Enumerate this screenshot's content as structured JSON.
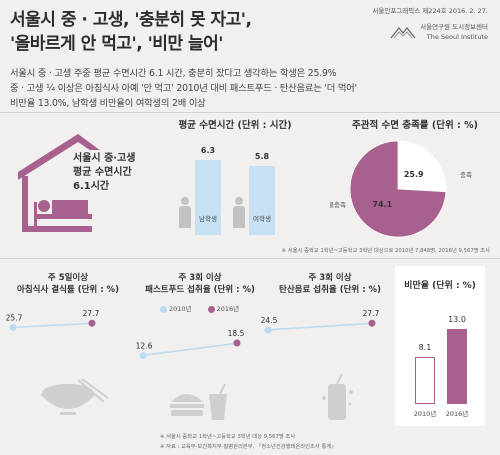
{
  "title_line1": "서울시 중 · 고생, '충분히 못 자고',",
  "title_line2": "'올바르게 안 먹고', '비만 늘어'",
  "meta": {
    "publication": "서울인포그래픽스 제224호 2016. 2. 27.",
    "org_kr": "서울연구원 도시정보센터",
    "org_en": "The Seoul Institute"
  },
  "intro": {
    "line1": "서울시 중 · 고생 주중 평균 수면시간 6.1 시간, 충분히 잤다고 생각하는 학생은 25.9%",
    "line2": "중 · 고생 ¼ 이상은 아침식사 아예 '안 먹고' 2010년 대비 패스트푸드 · 탄산음료는 '더 먹어'",
    "line3": "비만율 13.0%, 남학생 비만율이 여학생의 2배 이상"
  },
  "hero": {
    "line1": "서울시 중·고생",
    "line2": "평균 수면시간",
    "line3": "6.1시간"
  },
  "footnote_top": "※ 서울시 중학교 1학년~고등학교 3학년 대상으로 2010년 7,848명, 2016년 9,567명 조사",
  "footnote_bottom1": "※ 서울시 중학교 1학년~고등학교 3학년 대상 9,567명 조사",
  "footnote_bottom2": "※ 자료 : 교육부·보건복지부·질병관리본부, 『청소년건강행태온라인조사 통계』",
  "legend": {
    "y2010": "2010년",
    "y2016": "2016년"
  },
  "colors": {
    "accent": "#a8608e",
    "light_blue": "#c6e1f4",
    "line_blue": "#bcdcf2",
    "icon_gray": "#cfcfcf"
  },
  "chart_data": [
    {
      "type": "bar",
      "title": "평균 수면시간 (단위 : 시간)",
      "categories": [
        "남학생",
        "여학생"
      ],
      "values": [
        6.3,
        5.8
      ],
      "ylim": [
        0,
        6.3
      ]
    },
    {
      "type": "pie",
      "title": "주관적 수면 충족률 (단위 : %)",
      "labels": [
        "충족",
        "불충족"
      ],
      "values": [
        25.9,
        74.1
      ]
    },
    {
      "type": "line",
      "title_line1": "주 5일이상",
      "title_line2": "아침식사 결식률 (단위 : %)",
      "x": [
        "2010년",
        "2016년"
      ],
      "values": [
        25.7,
        27.7
      ]
    },
    {
      "type": "line",
      "title_line1": "주 3회 이상",
      "title_line2": "패스트푸드 섭취율 (단위 : %)",
      "x": [
        "2010년",
        "2016년"
      ],
      "values": [
        12.6,
        18.5
      ]
    },
    {
      "type": "line",
      "title_line1": "주 3회 이상",
      "title_line2": "탄산음료 섭취율 (단위 : %)",
      "x": [
        "2010년",
        "2016년"
      ],
      "values": [
        24.5,
        27.7
      ]
    },
    {
      "type": "bar",
      "title": "비만율 (단위 : %)",
      "categories": [
        "2010년",
        "2016년"
      ],
      "values": [
        8.1,
        13.0
      ],
      "ylim": [
        0,
        13.0
      ]
    }
  ]
}
